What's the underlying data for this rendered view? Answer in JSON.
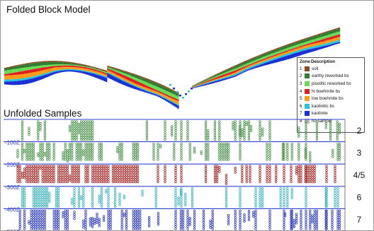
{
  "block_model": {
    "title": "Folded Block Model",
    "legend": {
      "zone_header": "Zone",
      "description_header": "Description",
      "entries": [
        {
          "zone": "1",
          "description": "soil",
          "color": "#8b4a1e"
        },
        {
          "zone": "2",
          "description": "earthy reworked bs",
          "color": "#2e7d32"
        },
        {
          "zone": "3",
          "description": "pisolitic reworked bs",
          "color": "#66dd55"
        },
        {
          "zone": "4",
          "description": "hi boehmite bs",
          "color": "#e02020"
        },
        {
          "zone": "5",
          "description": "low boehmite bs",
          "color": "#ff9a1a"
        },
        {
          "zone": "6",
          "description": "kaolinitic bs",
          "color": "#26c6da"
        },
        {
          "zone": "7",
          "description": "kaolinite",
          "color": "#1a2fd4"
        },
        {
          "zone": "8",
          "description": "no sample",
          "color": "#bdbdbd"
        }
      ]
    }
  },
  "samples": {
    "title": "Unfolded Samples",
    "depth_labels": [
      "-100Z",
      "-200Z",
      "-300Z",
      "-400Z",
      "-500Z"
    ],
    "band_labels": [
      "2",
      "3",
      "4/5",
      "6",
      "7"
    ],
    "band_colors": [
      "#3d8b3d",
      "#3d8b3d",
      "#a01818",
      "#2fb0b8",
      "#2030b8"
    ],
    "line_color": "#3344cc"
  }
}
